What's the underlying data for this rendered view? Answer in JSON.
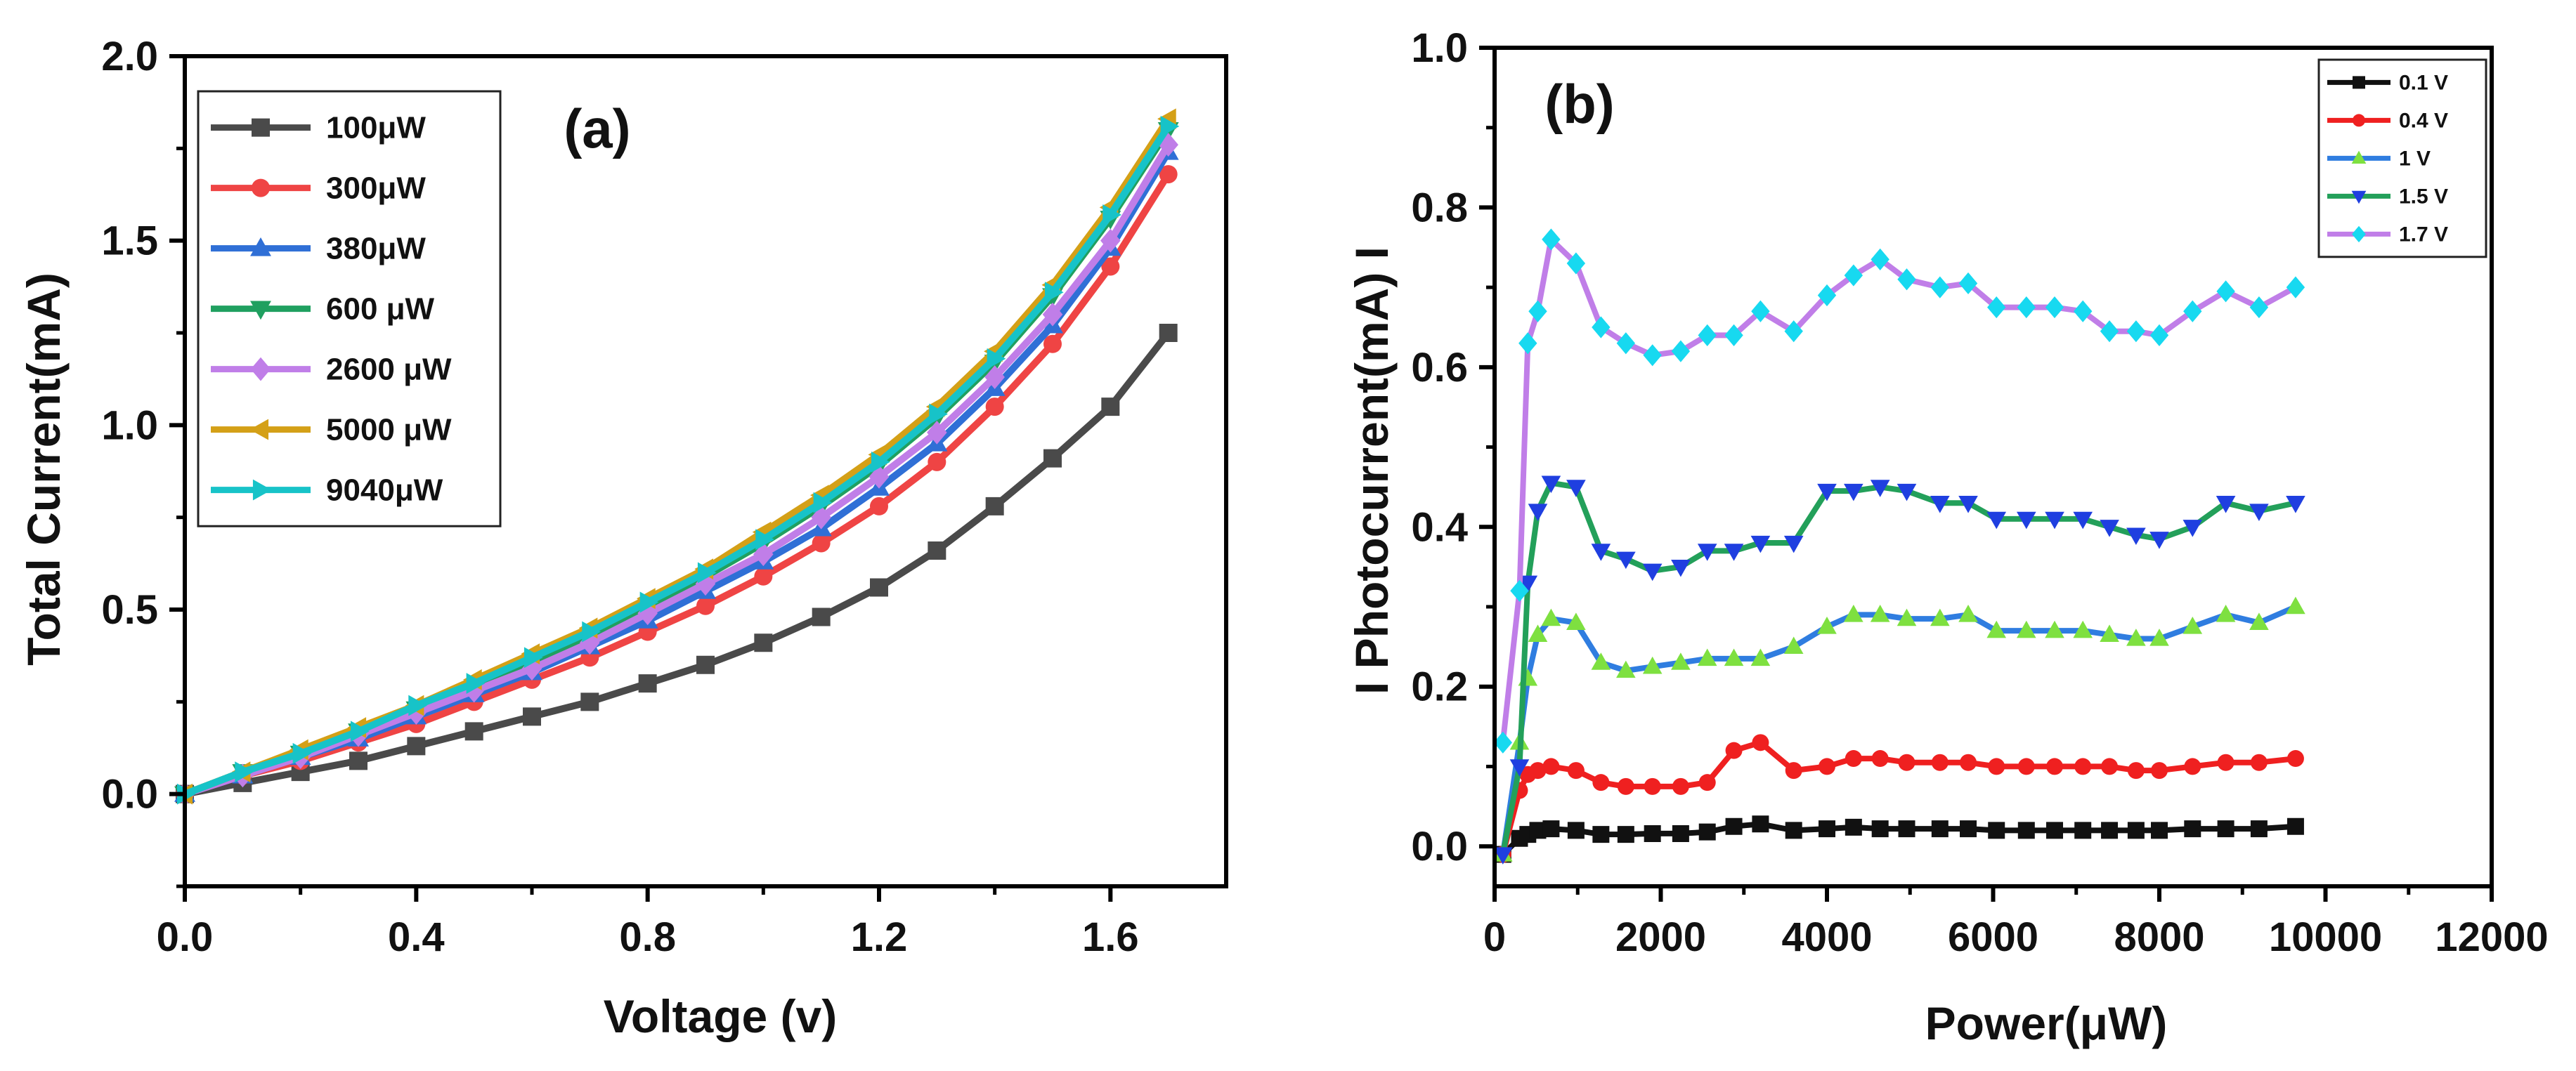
{
  "chart_data": [
    {
      "type": "line",
      "panel_label": "(a)",
      "xlabel": "Voltage (v)",
      "ylabel": "Total Current(mA)",
      "xlim": [
        0.0,
        1.8
      ],
      "ylim": [
        -0.25,
        2.0
      ],
      "xticks": [
        "0.0",
        "0.4",
        "0.8",
        "1.2",
        "1.6"
      ],
      "yticks": [
        "0.0",
        "0.5",
        "1.0",
        "1.5",
        "2.0"
      ],
      "legend_position": "top-left",
      "x": [
        0.0,
        0.1,
        0.2,
        0.3,
        0.4,
        0.5,
        0.6,
        0.7,
        0.8,
        0.9,
        1.0,
        1.1,
        1.2,
        1.3,
        1.4,
        1.5,
        1.6,
        1.7
      ],
      "series": [
        {
          "name": "100μW",
          "color": "#4a4a4a",
          "marker": "square",
          "values": [
            0.0,
            0.03,
            0.06,
            0.09,
            0.13,
            0.17,
            0.21,
            0.25,
            0.3,
            0.35,
            0.41,
            0.48,
            0.56,
            0.66,
            0.78,
            0.91,
            1.05,
            1.25
          ]
        },
        {
          "name": "300μW",
          "color": "#ef4444",
          "marker": "circle",
          "values": [
            0.0,
            0.05,
            0.09,
            0.14,
            0.19,
            0.25,
            0.31,
            0.37,
            0.44,
            0.51,
            0.59,
            0.68,
            0.78,
            0.9,
            1.05,
            1.22,
            1.43,
            1.68
          ]
        },
        {
          "name": "380μW",
          "color": "#2f6fd6",
          "marker": "triangle-up",
          "values": [
            0.0,
            0.05,
            0.1,
            0.15,
            0.21,
            0.27,
            0.33,
            0.4,
            0.47,
            0.55,
            0.63,
            0.72,
            0.83,
            0.95,
            1.1,
            1.27,
            1.48,
            1.74
          ]
        },
        {
          "name": "600 μW",
          "color": "#20a060",
          "marker": "triangle-down",
          "values": [
            0.0,
            0.06,
            0.11,
            0.17,
            0.23,
            0.29,
            0.36,
            0.43,
            0.51,
            0.59,
            0.68,
            0.78,
            0.89,
            1.02,
            1.17,
            1.35,
            1.56,
            1.8
          ]
        },
        {
          "name": "2600 μW",
          "color": "#c07ee8",
          "marker": "diamond",
          "values": [
            0.0,
            0.05,
            0.1,
            0.16,
            0.22,
            0.28,
            0.34,
            0.41,
            0.49,
            0.57,
            0.65,
            0.75,
            0.86,
            0.98,
            1.13,
            1.3,
            1.5,
            1.76
          ]
        },
        {
          "name": "5000 μW",
          "color": "#d4a017",
          "marker": "triangle-left",
          "values": [
            0.0,
            0.06,
            0.12,
            0.18,
            0.24,
            0.31,
            0.38,
            0.45,
            0.53,
            0.61,
            0.71,
            0.81,
            0.92,
            1.05,
            1.2,
            1.38,
            1.59,
            1.83
          ]
        },
        {
          "name": "9040μW",
          "color": "#17c3c8",
          "marker": "triangle-right",
          "values": [
            0.0,
            0.06,
            0.11,
            0.17,
            0.24,
            0.3,
            0.37,
            0.44,
            0.52,
            0.6,
            0.69,
            0.79,
            0.9,
            1.03,
            1.18,
            1.36,
            1.57,
            1.81
          ]
        }
      ]
    },
    {
      "type": "line",
      "panel_label": "(b)",
      "xlabel": "Power(μW)",
      "ylabel": "I Photocurrent(mA) I",
      "xlim": [
        0,
        12000
      ],
      "ylim": [
        -0.05,
        1.0
      ],
      "xticks": [
        "0",
        "2000",
        "4000",
        "6000",
        "8000",
        "10000",
        "12000"
      ],
      "yticks": [
        "0.0",
        "0.2",
        "0.4",
        "0.6",
        "0.8",
        "1.0"
      ],
      "legend_position": "top-right",
      "x": [
        100,
        300,
        400,
        520,
        680,
        980,
        1280,
        1580,
        1900,
        2240,
        2560,
        2880,
        3200,
        3600,
        4000,
        4320,
        4640,
        4960,
        5360,
        5700,
        6040,
        6400,
        6740,
        7080,
        7400,
        7720,
        8000,
        8400,
        8800,
        9200,
        9640
      ],
      "series": [
        {
          "name": "0.1 V",
          "color": "#111111",
          "marker": "square",
          "values": [
            -0.01,
            0.01,
            0.015,
            0.02,
            0.022,
            0.02,
            0.015,
            0.015,
            0.016,
            0.016,
            0.018,
            0.025,
            0.028,
            0.02,
            0.022,
            0.024,
            0.022,
            0.022,
            0.022,
            0.022,
            0.02,
            0.02,
            0.02,
            0.02,
            0.02,
            0.02,
            0.02,
            0.022,
            0.022,
            0.022,
            0.025
          ]
        },
        {
          "name": "0.4 V",
          "color": "#ef2020",
          "marker": "circle",
          "values": [
            -0.01,
            0.07,
            0.09,
            0.095,
            0.1,
            0.095,
            0.08,
            0.075,
            0.075,
            0.075,
            0.08,
            0.12,
            0.13,
            0.095,
            0.1,
            0.11,
            0.11,
            0.105,
            0.105,
            0.105,
            0.1,
            0.1,
            0.1,
            0.1,
            0.1,
            0.095,
            0.095,
            0.1,
            0.105,
            0.105,
            0.11
          ]
        },
        {
          "name": "1 V",
          "color": "#2f7de0",
          "marker": "triangle-up",
          "marker_color": "#7ee040",
          "values": [
            -0.01,
            0.13,
            0.21,
            0.265,
            0.285,
            0.28,
            0.23,
            0.22,
            0.225,
            0.23,
            0.235,
            0.235,
            0.235,
            0.25,
            0.275,
            0.29,
            0.29,
            0.285,
            0.285,
            0.29,
            0.27,
            0.27,
            0.27,
            0.27,
            0.265,
            0.26,
            0.26,
            0.275,
            0.29,
            0.28,
            0.3
          ]
        },
        {
          "name": "1.5 V",
          "color": "#23a05a",
          "marker": "triangle-down",
          "marker_color": "#1f3fe0",
          "values": [
            -0.01,
            0.1,
            0.33,
            0.42,
            0.455,
            0.45,
            0.37,
            0.36,
            0.345,
            0.35,
            0.37,
            0.37,
            0.38,
            0.38,
            0.445,
            0.445,
            0.45,
            0.445,
            0.43,
            0.43,
            0.41,
            0.41,
            0.41,
            0.41,
            0.4,
            0.39,
            0.385,
            0.4,
            0.43,
            0.42,
            0.43
          ]
        },
        {
          "name": "1.7 V",
          "color": "#c07ee8",
          "marker": "diamond",
          "marker_color": "#17d9f0",
          "values": [
            0.13,
            0.32,
            0.63,
            0.67,
            0.76,
            0.73,
            0.65,
            0.63,
            0.615,
            0.62,
            0.64,
            0.64,
            0.67,
            0.645,
            0.69,
            0.715,
            0.735,
            0.71,
            0.7,
            0.705,
            0.675,
            0.675,
            0.675,
            0.67,
            0.645,
            0.645,
            0.64,
            0.67,
            0.695,
            0.675,
            0.7
          ]
        }
      ]
    }
  ]
}
